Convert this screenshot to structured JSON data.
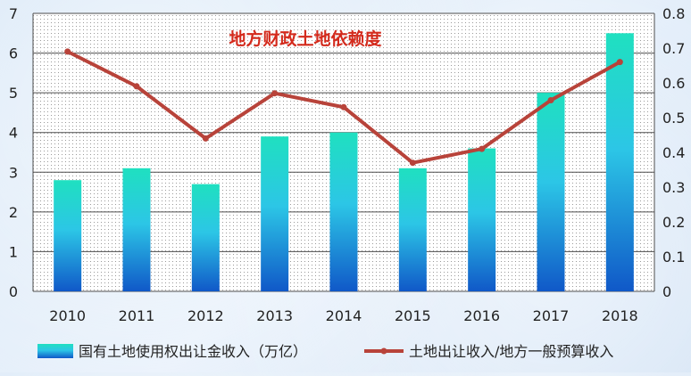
{
  "chart_data": {
    "type": "bar",
    "title": "地方财政土地依赖度",
    "categories": [
      "2010",
      "2011",
      "2012",
      "2013",
      "2014",
      "2015",
      "2016",
      "2017",
      "2018"
    ],
    "series": [
      {
        "name": "国有土地使用权出让金收入（万亿）",
        "type": "bar",
        "axis": "left",
        "values": [
          2.8,
          3.1,
          2.7,
          3.9,
          4.0,
          3.1,
          3.6,
          5.0,
          6.5
        ]
      },
      {
        "name": "土地出让收入/地方一般预算收入",
        "type": "line",
        "axis": "right",
        "values": [
          0.69,
          0.59,
          0.44,
          0.57,
          0.53,
          0.37,
          0.41,
          0.55,
          0.66
        ]
      }
    ],
    "y_left": {
      "min": 0,
      "max": 7,
      "ticks": [
        "0",
        "1",
        "2",
        "3",
        "4",
        "5",
        "6",
        "7"
      ]
    },
    "y_right": {
      "min": 0,
      "max": 0.8,
      "ticks": [
        "0",
        "0.1",
        "0.2",
        "0.3",
        "0.4",
        "0.5",
        "0.6",
        "0.7",
        "0.8"
      ]
    },
    "legend_position": "bottom",
    "grid": true,
    "colors": {
      "bar_top": "#1fe0c0",
      "bar_mid": "#2cc6e6",
      "bar_bottom": "#1058c8",
      "line": "#b8433a",
      "title": "#d42a1c",
      "grid": "#4d4d4d"
    }
  }
}
